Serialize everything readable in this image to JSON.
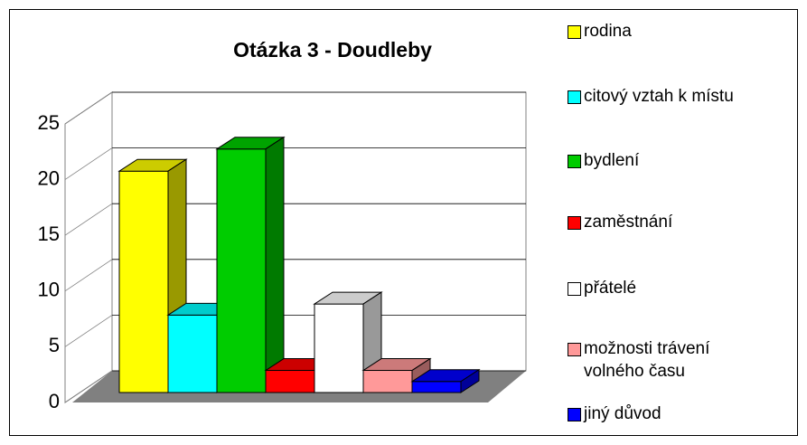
{
  "chart_data": {
    "type": "bar3d",
    "title": "Otázka 3 - Doudleby",
    "categories": [
      "rodina",
      "citový vztah k místu",
      "bydlení",
      "zaměstnání",
      "přátelé",
      "možnosti trávení volného času",
      "jiný důvod"
    ],
    "values": [
      20,
      7,
      22,
      2,
      8,
      2,
      1
    ],
    "colors": [
      "#ffff00",
      "#00ffff",
      "#00cc00",
      "#ff0000",
      "#ffffff",
      "#ff9999",
      "#0000ff"
    ],
    "ylim": [
      0,
      25
    ],
    "yticks": [
      0,
      5,
      10,
      15,
      20,
      25
    ],
    "grid": true,
    "legend": "right"
  }
}
